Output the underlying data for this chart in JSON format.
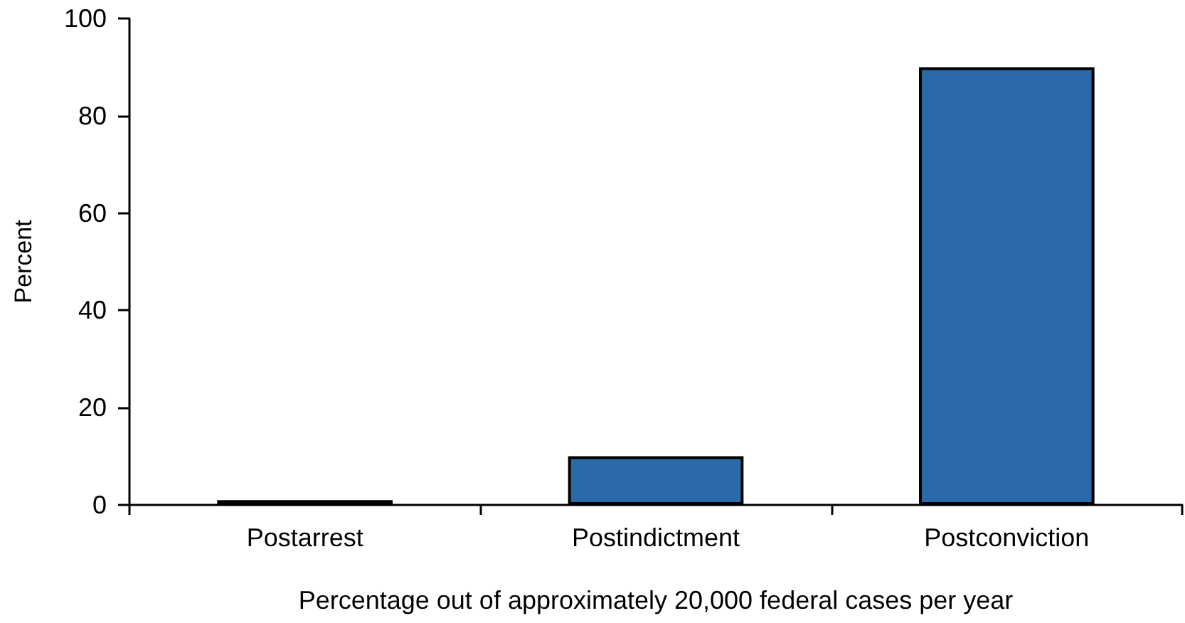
{
  "chart_data": {
    "type": "bar",
    "ylabel": "Percent",
    "xlabel": "Percentage out of approximately 20,000 federal cases per year",
    "categories": [
      "Postarrest",
      "Postindictment",
      "Postconviction"
    ],
    "values": [
      1,
      10,
      90
    ],
    "color": "#2a6aa8",
    "ylim": [
      0,
      100
    ],
    "yticks": [
      0,
      20,
      40,
      60,
      80,
      100
    ]
  }
}
